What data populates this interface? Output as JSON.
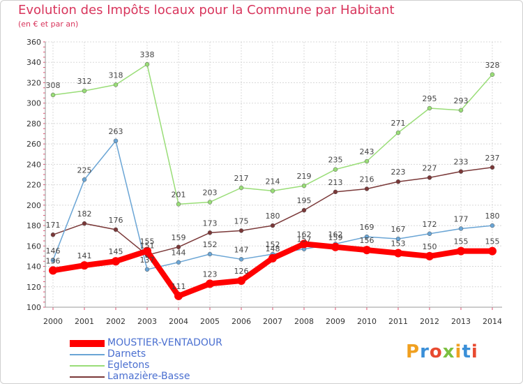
{
  "header": {
    "title": "Evolution des Impôts locaux pour la Commune par Habitant",
    "subtitle": "(en € et par an)"
  },
  "logo": {
    "text": "Proxiti",
    "colors": [
      "#f0a020",
      "#3a8fd8",
      "#e84a30",
      "#7cc040",
      "#f0a020",
      "#3a8fd8",
      "#e84a30"
    ]
  },
  "chart_data": {
    "type": "line",
    "x": [
      2000,
      2001,
      2002,
      2003,
      2004,
      2005,
      2006,
      2007,
      2008,
      2009,
      2010,
      2011,
      2012,
      2013,
      2014
    ],
    "ylim": [
      100,
      360
    ],
    "yticks": [
      100,
      120,
      140,
      160,
      180,
      200,
      220,
      240,
      260,
      280,
      300,
      320,
      340,
      360
    ],
    "grid": true,
    "legend_position": "bottom-left",
    "series": [
      {
        "name": "MOUSTIER-VENTADOUR",
        "color": "#ff0000",
        "values": [
          136,
          141,
          145,
          155,
          111,
          123,
          126,
          148,
          162,
          159,
          156,
          153,
          150,
          155,
          155
        ]
      },
      {
        "name": "Darnets",
        "color": "#6aa5d5",
        "values": [
          146,
          225,
          263,
          137,
          144,
          152,
          147,
          152,
          157,
          162,
          169,
          167,
          172,
          177,
          180
        ]
      },
      {
        "name": "Egletons",
        "color": "#99dd77",
        "values": [
          308,
          312,
          318,
          338,
          201,
          203,
          217,
          214,
          219,
          235,
          243,
          271,
          295,
          293,
          328
        ]
      },
      {
        "name": "Lamazière-Basse",
        "color": "#7a3838",
        "values": [
          171,
          182,
          176,
          151,
          159,
          173,
          175,
          180,
          195,
          213,
          216,
          223,
          227,
          233,
          237
        ]
      }
    ]
  }
}
